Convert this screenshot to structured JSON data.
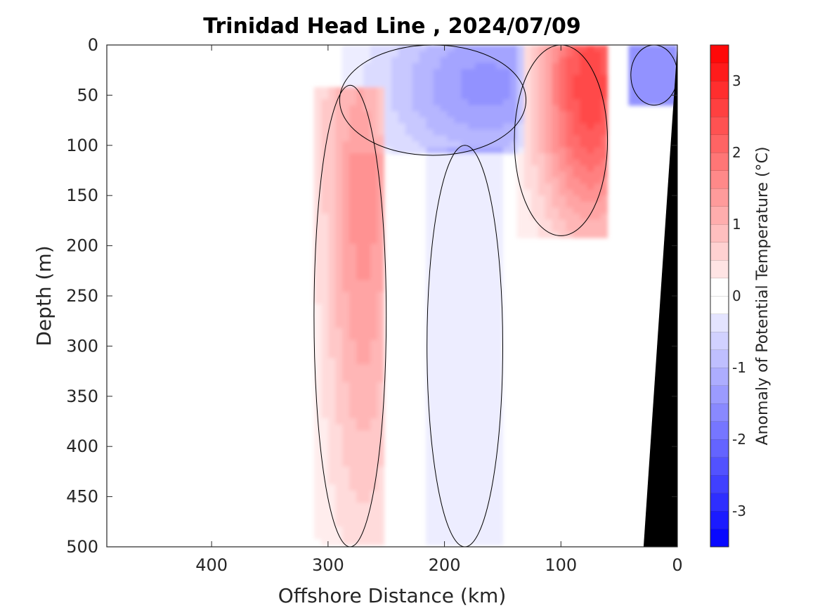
{
  "chart_data": {
    "type": "contour",
    "title": "Trinidad Head Line , 2024/07/09",
    "xlabel": "Offshore Distance (km)",
    "ylabel": "Depth (m)",
    "xlim": [
      490,
      0
    ],
    "ylim": [
      0,
      500
    ],
    "x_reversed": true,
    "y_reversed": true,
    "x_ticks": [
      400,
      300,
      200,
      100,
      0
    ],
    "y_ticks": [
      0,
      50,
      100,
      150,
      200,
      250,
      300,
      350,
      400,
      450,
      500
    ],
    "colorbar": {
      "label": "Anomaly of Potential Temperature (°C)",
      "range": [
        -3.5,
        3.5
      ],
      "step": 0.25,
      "ticks": [
        3,
        2,
        1,
        0,
        -1,
        -2,
        -3
      ],
      "low_color": "#0000ff",
      "mid_color": "#ffffff",
      "high_color": "#ff0000"
    },
    "data_coverage_km": [
      0,
      312
    ],
    "bathymetry": {
      "color": "#000000",
      "profile": [
        {
          "depth": 500,
          "x": 29
        },
        {
          "depth": 0,
          "x": 0
        }
      ]
    },
    "anomaly_features": [
      {
        "name": "offshore warm band",
        "x_range": [
          250,
          312
        ],
        "depth_range": [
          40,
          500
        ],
        "max_anomaly": 1.6,
        "core": {
          "x": 270,
          "depth": 110
        }
      },
      {
        "name": "nearshore warm core",
        "x_range": [
          60,
          140
        ],
        "depth_range": [
          0,
          190
        ],
        "max_anomaly": 2.6,
        "core": {
          "x": 75,
          "depth": 40
        }
      },
      {
        "name": "near-surface cool lens",
        "x_range": [
          130,
          290
        ],
        "depth_range": [
          0,
          110
        ],
        "min_anomaly": -1.5,
        "core": {
          "x": 165,
          "depth": 40
        }
      },
      {
        "name": "deep cool column",
        "x_range": [
          150,
          215
        ],
        "depth_range": [
          100,
          500
        ],
        "min_anomaly": -0.4
      },
      {
        "name": "coastal surface cool patch",
        "x_range": [
          0,
          40
        ],
        "depth_range": [
          0,
          60
        ],
        "min_anomaly": -1.6
      }
    ]
  }
}
